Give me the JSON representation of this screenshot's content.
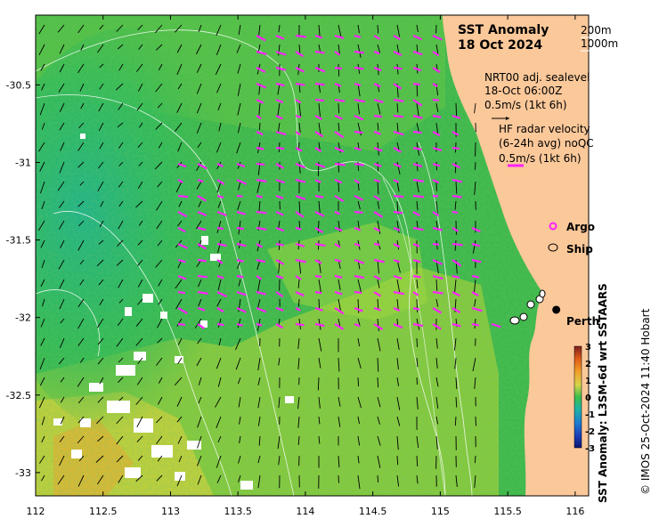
{
  "header": {
    "title_line1": "SST Anomaly",
    "title_line2": "18 Oct 2024"
  },
  "isobaths": {
    "label_200": "200m",
    "label_1000": "1000m"
  },
  "altimetry": {
    "line1": "NRT00 adj. sealevel",
    "line2": "18-Oct 06:00Z",
    "scale": "0.5m/s (1kt 6h)"
  },
  "hf_radar": {
    "line1": "HF radar velocity",
    "line2": "(6-24h avg) noQC",
    "scale": "0.5m/s (1kt 6h)"
  },
  "markers": {
    "argo": "Argo",
    "ship": "Ship",
    "argo_symbol": "o"
  },
  "city": {
    "name": "Perth",
    "lon": 115.86,
    "lat": -31.95
  },
  "colorbar": {
    "label": "SST Anomaly: L3SM-6d wrt SSTAARS",
    "ticks": [
      "3",
      "2",
      "1",
      "0",
      "-1",
      "-2",
      "-3"
    ],
    "min": -3,
    "max": 3
  },
  "credit": "© IMOS 25-Oct-2024 11:40 Hobart",
  "axes": {
    "x_ticks": [
      "112",
      "112.5",
      "113",
      "113.5",
      "114",
      "114.5",
      "115",
      "115.5",
      "116"
    ],
    "y_ticks": [
      "-30.5",
      "-31",
      "-31.5",
      "-32",
      "-32.5",
      "-33"
    ],
    "lon_range": [
      112,
      116.1
    ],
    "lat_range": [
      -33.15,
      -30.05
    ]
  },
  "colors": {
    "land": "#fbc89a",
    "ocean_mid": "#3db84a",
    "ocean_warm": "#b8d63a",
    "hf_vectors": "#ff22ff",
    "altimetry_vectors": "#000000",
    "isobaths": "#ffffff"
  }
}
